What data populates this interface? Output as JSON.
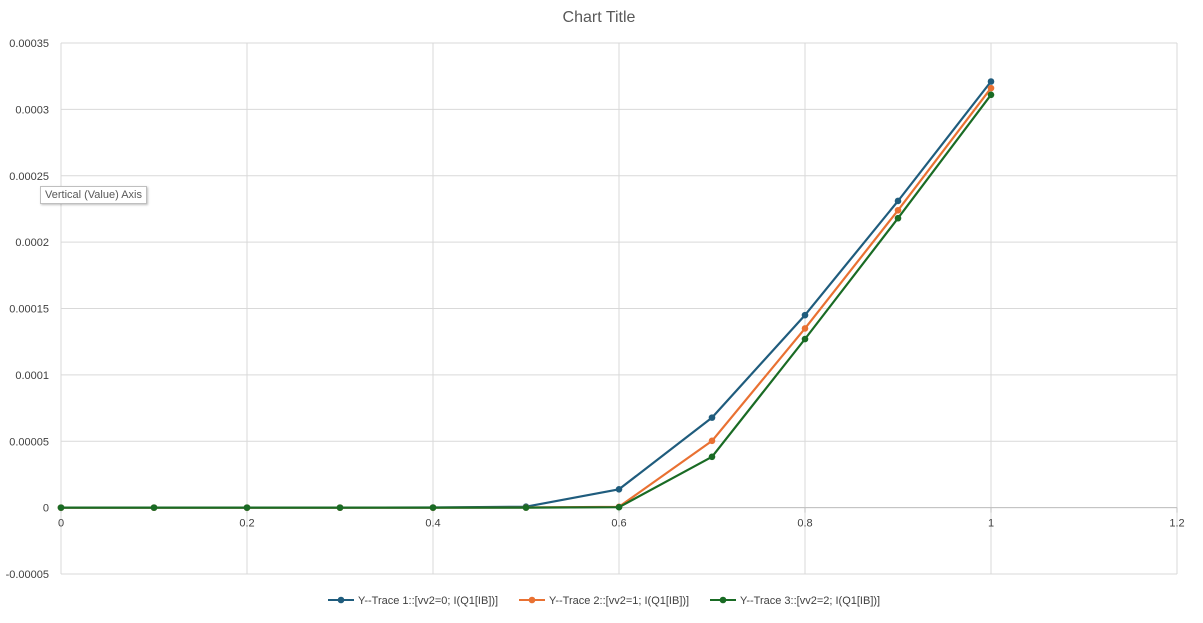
{
  "tooltip": {
    "text": "Vertical (Value) Axis"
  },
  "chart_data": {
    "type": "line",
    "title": "Chart Title",
    "xlabel": "",
    "ylabel": "",
    "xlim": [
      0,
      1.2
    ],
    "ylim": [
      -5e-05,
      0.00035
    ],
    "x_ticks": [
      0,
      0.2,
      0.4,
      0.6,
      0.8,
      1,
      1.2
    ],
    "x_tick_labels": [
      "0",
      "0.2",
      "0.4",
      "0.6",
      "0.8",
      "1",
      "1.2"
    ],
    "y_ticks": [
      -5e-05,
      0,
      5e-05,
      0.0001,
      0.00015,
      0.0002,
      0.00025,
      0.0003,
      0.00035
    ],
    "y_tick_labels": [
      "-0.00005",
      "0",
      "0.00005",
      "0.0001",
      "0.00015",
      "0.0002",
      "0.00025",
      "0.0003",
      "0.00035"
    ],
    "grid": true,
    "legend_position": "bottom",
    "x": [
      0,
      0.1,
      0.2,
      0.3,
      0.4,
      0.5,
      0.6,
      0.7,
      0.8,
      0.9,
      1.0
    ],
    "series": [
      {
        "name": "Y--Trace 1::[vv2=0; I(Q1[IB])]",
        "color": "#1f5c7d",
        "values": [
          0,
          0,
          0,
          0,
          1e-07,
          7e-07,
          1.38e-05,
          6.78e-05,
          0.000145,
          0.000231,
          0.000321
        ]
      },
      {
        "name": "Y--Trace 2::[vv2=1; I(Q1[IB])]",
        "color": "#e97132",
        "values": [
          0,
          0,
          0,
          0,
          0,
          1e-07,
          6e-07,
          5.03e-05,
          0.000135,
          0.000224,
          0.000316
        ]
      },
      {
        "name": "Y--Trace 3::[vv2=2; I(Q1[IB])]",
        "color": "#196b24",
        "values": [
          0,
          0,
          0,
          0,
          0,
          0,
          3e-07,
          3.83e-05,
          0.000127,
          0.000218,
          0.000311
        ]
      }
    ]
  }
}
